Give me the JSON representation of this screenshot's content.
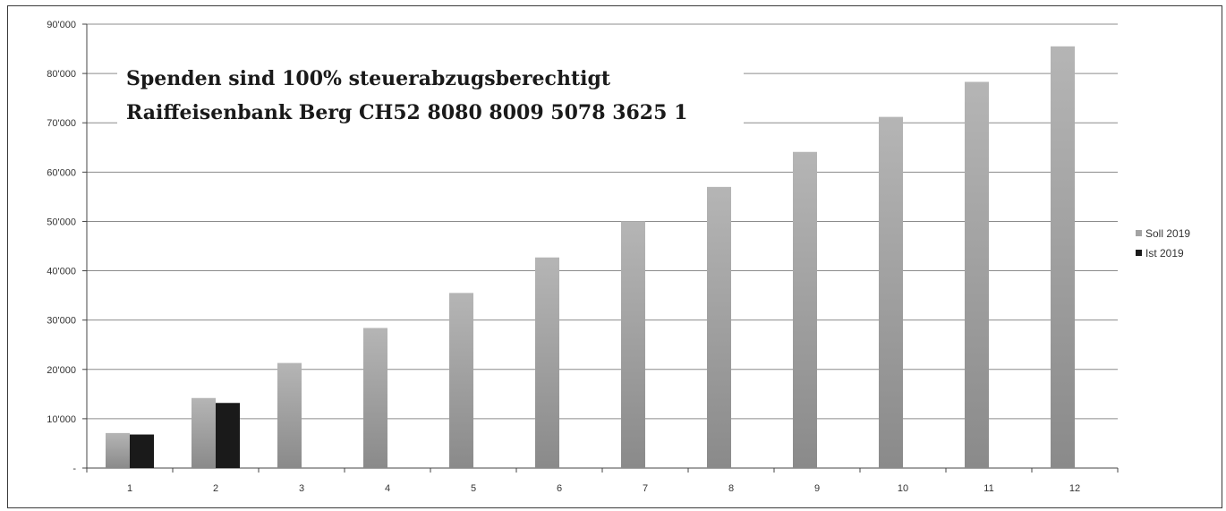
{
  "chart_data": {
    "type": "bar",
    "title": "",
    "xlabel": "",
    "ylabel": "",
    "categories": [
      "1",
      "2",
      "3",
      "4",
      "5",
      "6",
      "7",
      "8",
      "9",
      "10",
      "11",
      "12"
    ],
    "series": [
      {
        "name": "Soll 2019",
        "color": "#a3a3a3",
        "values": [
          7100,
          14200,
          21300,
          28400,
          35500,
          42700,
          50000,
          57000,
          64100,
          71200,
          78300,
          85500
        ]
      },
      {
        "name": "Ist 2019",
        "color": "#1a1a1a",
        "values": [
          6800,
          13200,
          null,
          null,
          null,
          null,
          null,
          null,
          null,
          null,
          null,
          null
        ]
      }
    ],
    "ylim": [
      0,
      90000
    ],
    "yticks": [
      {
        "value": 0,
        "label": "-"
      },
      {
        "value": 10000,
        "label": "10'000"
      },
      {
        "value": 20000,
        "label": "20'000"
      },
      {
        "value": 30000,
        "label": "30'000"
      },
      {
        "value": 40000,
        "label": "40'000"
      },
      {
        "value": 50000,
        "label": "50'000"
      },
      {
        "value": 60000,
        "label": "60'000"
      },
      {
        "value": 70000,
        "label": "70'000"
      },
      {
        "value": 80000,
        "label": "80'000"
      },
      {
        "value": 90000,
        "label": "90'000"
      }
    ],
    "grid": true,
    "legend_position": "right",
    "annotation": [
      "Spenden sind 100% steuerabzugsberechtigt",
      "Raiffeisenbank Berg CH52 8080 8009 5078 3625 1"
    ]
  }
}
